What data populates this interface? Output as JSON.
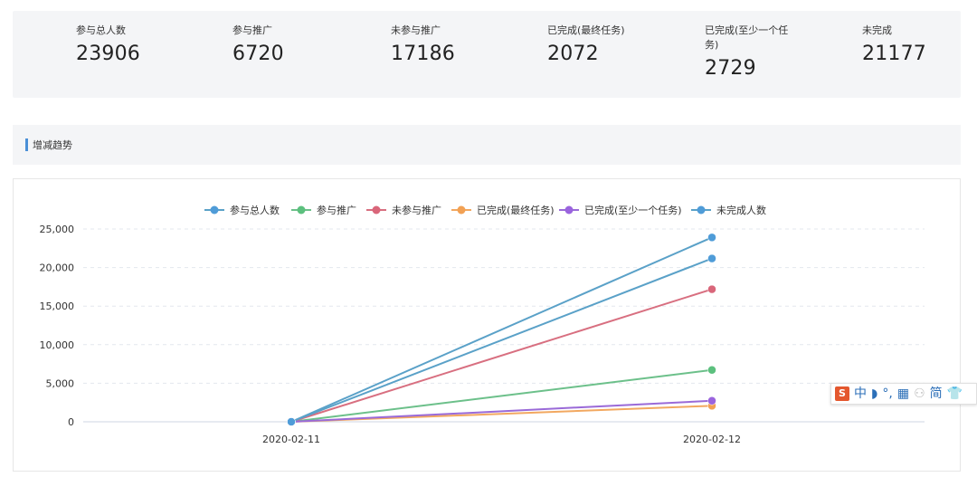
{
  "stats": [
    {
      "label": "参与总人数",
      "value": "23906"
    },
    {
      "label": "参与推广",
      "value": "6720"
    },
    {
      "label": "未参与推广",
      "value": "17186"
    },
    {
      "label": "已完成(最终任务)",
      "value": "2072"
    },
    {
      "label": "已完成(至少一个任务)",
      "value": "2729"
    },
    {
      "label": "未完成",
      "value": "21177"
    }
  ],
  "trend": {
    "title": "增减趋势"
  },
  "ime": {
    "items": [
      "中",
      "◗",
      "°,",
      "▦",
      "⚇",
      "简",
      "👕"
    ]
  },
  "chart_data": {
    "type": "line",
    "x": [
      "2020-02-11",
      "2020-02-12"
    ],
    "ylim": [
      0,
      25000
    ],
    "yticks": [
      0,
      5000,
      10000,
      15000,
      20000,
      25000
    ],
    "ytick_labels": [
      "0",
      "5,000",
      "10,000",
      "15,000",
      "20,000",
      "25,000"
    ],
    "grid": true,
    "legend_position": "top-center",
    "series": [
      {
        "name": "参与总人数",
        "color": "#4f9cd8",
        "line_color": "#5aa1c8",
        "values": [
          0,
          23906
        ]
      },
      {
        "name": "参与推广",
        "color": "#5cc07e",
        "line_color": "#6cc08a",
        "values": [
          0,
          6720
        ]
      },
      {
        "name": "未参与推广",
        "color": "#d9667a",
        "line_color": "#d86f80",
        "values": [
          0,
          17186
        ]
      },
      {
        "name": "已完成(最终任务)",
        "color": "#f2a154",
        "line_color": "#f2a860",
        "values": [
          0,
          2072
        ]
      },
      {
        "name": "已完成(至少一个任务)",
        "color": "#9a64de",
        "line_color": "#9a6ad8",
        "values": [
          0,
          2729
        ]
      },
      {
        "name": "未完成人数",
        "color": "#4f9cd8",
        "line_color": "#5aa1c8",
        "values": [
          0,
          21177
        ]
      }
    ]
  }
}
